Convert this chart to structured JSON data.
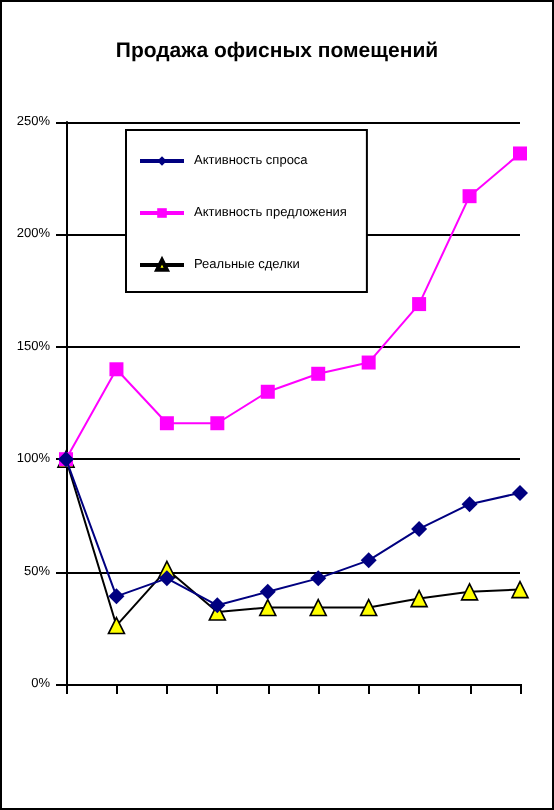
{
  "chart_data": {
    "type": "line",
    "title": "Продажа офисных помещений",
    "categories": [
      null,
      null,
      null,
      null,
      null,
      null,
      null,
      null,
      null,
      null
    ],
    "ylim": [
      0,
      250
    ],
    "yticks": [
      {
        "value": 0,
        "label": "0%"
      },
      {
        "value": 50,
        "label": "50%"
      },
      {
        "value": 100,
        "label": "100%"
      },
      {
        "value": 150,
        "label": "150%"
      },
      {
        "value": 200,
        "label": "200%"
      },
      {
        "value": 250,
        "label": "250%"
      }
    ],
    "series": [
      {
        "name": "Активность спроса",
        "color": "#000080",
        "marker": "diamond",
        "values": [
          100,
          39,
          47,
          35,
          41,
          47,
          55,
          69,
          80,
          85
        ]
      },
      {
        "name": "Активность предложения",
        "color": "#ff00ff",
        "marker": "square",
        "values": [
          100,
          140,
          116,
          116,
          130,
          138,
          143,
          169,
          217,
          236
        ]
      },
      {
        "name": "Реальные сделки",
        "color": "#000000",
        "colors": [
          "#ffff00",
          "#ffff00",
          "#ffff00",
          "#ffff00",
          "#ffff00",
          "#ffff00",
          "#ffff00",
          "#ffff00",
          "#ffff00",
          "#ffff00"
        ],
        "marker": "triangle",
        "values": [
          100,
          26,
          51,
          32,
          34,
          34,
          34,
          38,
          41,
          42
        ]
      }
    ],
    "grid": "y",
    "legend": "top left",
    "tick_labels": "y"
  }
}
